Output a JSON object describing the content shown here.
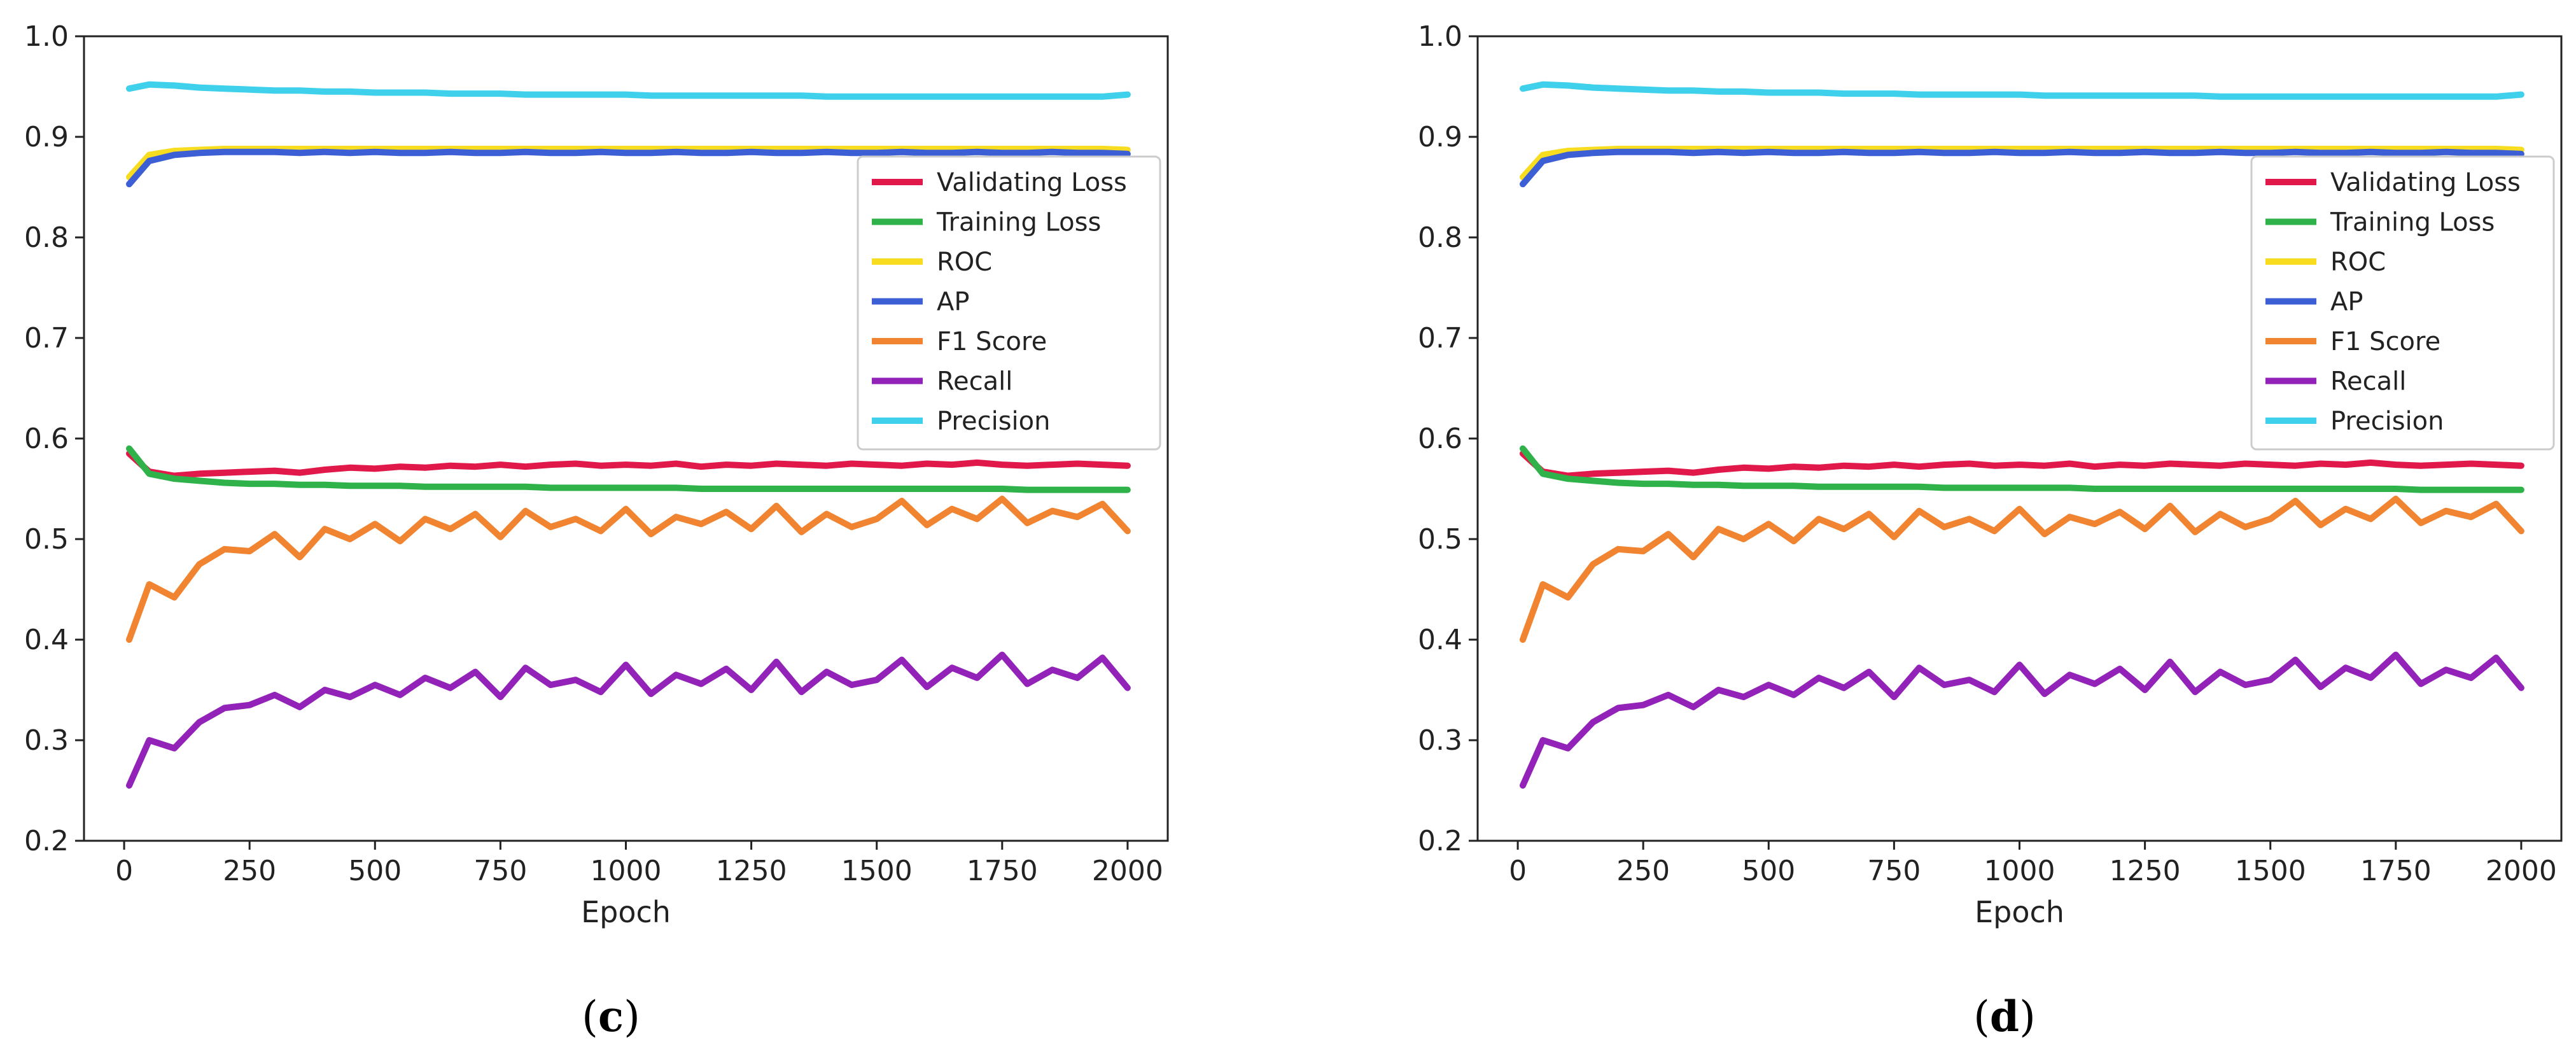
{
  "chart_data": [
    {
      "panel": "c",
      "caption_open": "(",
      "caption_letter": "c",
      "caption_close": ")",
      "type": "line",
      "title": "",
      "xlabel": "Epoch",
      "ylabel": "",
      "xlim": [
        -80,
        2080
      ],
      "ylim": [
        0.2,
        1.0
      ],
      "xticks": [
        0,
        250,
        500,
        750,
        1000,
        1250,
        1500,
        1750,
        2000
      ],
      "yticks": [
        0.2,
        0.3,
        0.4,
        0.5,
        0.6,
        0.7,
        0.8,
        0.9,
        1.0
      ],
      "grid": false,
      "legend_position": "right",
      "x": [
        10,
        50,
        100,
        150,
        200,
        250,
        300,
        350,
        400,
        450,
        500,
        550,
        600,
        650,
        700,
        750,
        800,
        850,
        900,
        950,
        1000,
        1050,
        1100,
        1150,
        1200,
        1250,
        1300,
        1350,
        1400,
        1450,
        1500,
        1550,
        1600,
        1650,
        1700,
        1750,
        1800,
        1850,
        1900,
        1950,
        2000
      ],
      "series": [
        {
          "name": "Validating Loss",
          "color": "#e0194a",
          "values": [
            0.585,
            0.567,
            0.563,
            0.565,
            0.566,
            0.567,
            0.568,
            0.566,
            0.569,
            0.571,
            0.57,
            0.572,
            0.571,
            0.573,
            0.572,
            0.574,
            0.572,
            0.574,
            0.575,
            0.573,
            0.574,
            0.573,
            0.575,
            0.572,
            0.574,
            0.573,
            0.575,
            0.574,
            0.573,
            0.575,
            0.574,
            0.573,
            0.575,
            0.574,
            0.576,
            0.574,
            0.573,
            0.574,
            0.575,
            0.574,
            0.573
          ]
        },
        {
          "name": "Training Loss",
          "color": "#2fb24a",
          "values": [
            0.59,
            0.565,
            0.56,
            0.558,
            0.556,
            0.555,
            0.555,
            0.554,
            0.554,
            0.553,
            0.553,
            0.553,
            0.552,
            0.552,
            0.552,
            0.552,
            0.552,
            0.551,
            0.551,
            0.551,
            0.551,
            0.551,
            0.551,
            0.55,
            0.55,
            0.55,
            0.55,
            0.55,
            0.55,
            0.55,
            0.55,
            0.55,
            0.55,
            0.55,
            0.55,
            0.55,
            0.549,
            0.549,
            0.549,
            0.549,
            0.549
          ]
        },
        {
          "name": "ROC",
          "color": "#f7dc20",
          "values": [
            0.86,
            0.882,
            0.886,
            0.887,
            0.888,
            0.888,
            0.888,
            0.888,
            0.888,
            0.888,
            0.888,
            0.888,
            0.888,
            0.888,
            0.888,
            0.888,
            0.888,
            0.888,
            0.888,
            0.888,
            0.888,
            0.888,
            0.888,
            0.888,
            0.888,
            0.888,
            0.888,
            0.888,
            0.888,
            0.888,
            0.888,
            0.888,
            0.888,
            0.888,
            0.888,
            0.888,
            0.888,
            0.888,
            0.888,
            0.888,
            0.887
          ]
        },
        {
          "name": "AP",
          "color": "#3d5fd6",
          "values": [
            0.853,
            0.876,
            0.882,
            0.884,
            0.885,
            0.885,
            0.885,
            0.884,
            0.885,
            0.884,
            0.885,
            0.884,
            0.884,
            0.885,
            0.884,
            0.884,
            0.885,
            0.884,
            0.884,
            0.885,
            0.884,
            0.884,
            0.885,
            0.884,
            0.884,
            0.885,
            0.884,
            0.884,
            0.885,
            0.884,
            0.884,
            0.885,
            0.884,
            0.884,
            0.885,
            0.884,
            0.884,
            0.885,
            0.884,
            0.884,
            0.883
          ]
        },
        {
          "name": "F1 Score",
          "color": "#f08430",
          "values": [
            0.4,
            0.455,
            0.442,
            0.475,
            0.49,
            0.488,
            0.505,
            0.482,
            0.51,
            0.5,
            0.515,
            0.498,
            0.52,
            0.51,
            0.525,
            0.502,
            0.528,
            0.512,
            0.52,
            0.508,
            0.53,
            0.505,
            0.522,
            0.515,
            0.527,
            0.51,
            0.533,
            0.507,
            0.525,
            0.512,
            0.52,
            0.538,
            0.514,
            0.53,
            0.52,
            0.54,
            0.516,
            0.528,
            0.522,
            0.535,
            0.508
          ]
        },
        {
          "name": "Recall",
          "color": "#9222b8",
          "values": [
            0.255,
            0.3,
            0.292,
            0.318,
            0.332,
            0.335,
            0.345,
            0.333,
            0.35,
            0.343,
            0.355,
            0.345,
            0.362,
            0.352,
            0.368,
            0.343,
            0.372,
            0.355,
            0.36,
            0.348,
            0.375,
            0.346,
            0.365,
            0.356,
            0.371,
            0.35,
            0.378,
            0.348,
            0.368,
            0.355,
            0.36,
            0.38,
            0.353,
            0.372,
            0.362,
            0.385,
            0.356,
            0.37,
            0.362,
            0.382,
            0.352
          ]
        },
        {
          "name": "Precision",
          "color": "#3fd1ec",
          "values": [
            0.948,
            0.952,
            0.951,
            0.949,
            0.948,
            0.947,
            0.946,
            0.946,
            0.945,
            0.945,
            0.944,
            0.944,
            0.944,
            0.943,
            0.943,
            0.943,
            0.942,
            0.942,
            0.942,
            0.942,
            0.942,
            0.941,
            0.941,
            0.941,
            0.941,
            0.941,
            0.941,
            0.941,
            0.94,
            0.94,
            0.94,
            0.94,
            0.94,
            0.94,
            0.94,
            0.94,
            0.94,
            0.94,
            0.94,
            0.94,
            0.942
          ]
        }
      ]
    },
    {
      "panel": "d",
      "caption_open": "(",
      "caption_letter": "d",
      "caption_close": ")",
      "type": "line",
      "title": "",
      "xlabel": "Epoch",
      "ylabel": "",
      "xlim": [
        -80,
        2080
      ],
      "ylim": [
        0.2,
        1.0
      ],
      "xticks": [
        0,
        250,
        500,
        750,
        1000,
        1250,
        1500,
        1750,
        2000
      ],
      "yticks": [
        0.2,
        0.3,
        0.4,
        0.5,
        0.6,
        0.7,
        0.8,
        0.9,
        1.0
      ],
      "grid": false,
      "legend_position": "right",
      "x": [
        10,
        50,
        100,
        150,
        200,
        250,
        300,
        350,
        400,
        450,
        500,
        550,
        600,
        650,
        700,
        750,
        800,
        850,
        900,
        950,
        1000,
        1050,
        1100,
        1150,
        1200,
        1250,
        1300,
        1350,
        1400,
        1450,
        1500,
        1550,
        1600,
        1650,
        1700,
        1750,
        1800,
        1850,
        1900,
        1950,
        2000
      ],
      "series": [
        {
          "name": "Validating Loss",
          "color": "#e0194a",
          "values": [
            0.585,
            0.567,
            0.563,
            0.565,
            0.566,
            0.567,
            0.568,
            0.566,
            0.569,
            0.571,
            0.57,
            0.572,
            0.571,
            0.573,
            0.572,
            0.574,
            0.572,
            0.574,
            0.575,
            0.573,
            0.574,
            0.573,
            0.575,
            0.572,
            0.574,
            0.573,
            0.575,
            0.574,
            0.573,
            0.575,
            0.574,
            0.573,
            0.575,
            0.574,
            0.576,
            0.574,
            0.573,
            0.574,
            0.575,
            0.574,
            0.573
          ]
        },
        {
          "name": "Training Loss",
          "color": "#2fb24a",
          "values": [
            0.59,
            0.565,
            0.56,
            0.558,
            0.556,
            0.555,
            0.555,
            0.554,
            0.554,
            0.553,
            0.553,
            0.553,
            0.552,
            0.552,
            0.552,
            0.552,
            0.552,
            0.551,
            0.551,
            0.551,
            0.551,
            0.551,
            0.551,
            0.55,
            0.55,
            0.55,
            0.55,
            0.55,
            0.55,
            0.55,
            0.55,
            0.55,
            0.55,
            0.55,
            0.55,
            0.55,
            0.549,
            0.549,
            0.549,
            0.549,
            0.549
          ]
        },
        {
          "name": "ROC",
          "color": "#f7dc20",
          "values": [
            0.86,
            0.882,
            0.886,
            0.887,
            0.888,
            0.888,
            0.888,
            0.888,
            0.888,
            0.888,
            0.888,
            0.888,
            0.888,
            0.888,
            0.888,
            0.888,
            0.888,
            0.888,
            0.888,
            0.888,
            0.888,
            0.888,
            0.888,
            0.888,
            0.888,
            0.888,
            0.888,
            0.888,
            0.888,
            0.888,
            0.888,
            0.888,
            0.888,
            0.888,
            0.888,
            0.888,
            0.888,
            0.888,
            0.888,
            0.888,
            0.887
          ]
        },
        {
          "name": "AP",
          "color": "#3d5fd6",
          "values": [
            0.853,
            0.876,
            0.882,
            0.884,
            0.885,
            0.885,
            0.885,
            0.884,
            0.885,
            0.884,
            0.885,
            0.884,
            0.884,
            0.885,
            0.884,
            0.884,
            0.885,
            0.884,
            0.884,
            0.885,
            0.884,
            0.884,
            0.885,
            0.884,
            0.884,
            0.885,
            0.884,
            0.884,
            0.885,
            0.884,
            0.884,
            0.885,
            0.884,
            0.884,
            0.885,
            0.884,
            0.884,
            0.885,
            0.884,
            0.884,
            0.883
          ]
        },
        {
          "name": "F1 Score",
          "color": "#f08430",
          "values": [
            0.4,
            0.455,
            0.442,
            0.475,
            0.49,
            0.488,
            0.505,
            0.482,
            0.51,
            0.5,
            0.515,
            0.498,
            0.52,
            0.51,
            0.525,
            0.502,
            0.528,
            0.512,
            0.52,
            0.508,
            0.53,
            0.505,
            0.522,
            0.515,
            0.527,
            0.51,
            0.533,
            0.507,
            0.525,
            0.512,
            0.52,
            0.538,
            0.514,
            0.53,
            0.52,
            0.54,
            0.516,
            0.528,
            0.522,
            0.535,
            0.508
          ]
        },
        {
          "name": "Recall",
          "color": "#9222b8",
          "values": [
            0.255,
            0.3,
            0.292,
            0.318,
            0.332,
            0.335,
            0.345,
            0.333,
            0.35,
            0.343,
            0.355,
            0.345,
            0.362,
            0.352,
            0.368,
            0.343,
            0.372,
            0.355,
            0.36,
            0.348,
            0.375,
            0.346,
            0.365,
            0.356,
            0.371,
            0.35,
            0.378,
            0.348,
            0.368,
            0.355,
            0.36,
            0.38,
            0.353,
            0.372,
            0.362,
            0.385,
            0.356,
            0.37,
            0.362,
            0.382,
            0.352
          ]
        },
        {
          "name": "Precision",
          "color": "#3fd1ec",
          "values": [
            0.948,
            0.952,
            0.951,
            0.949,
            0.948,
            0.947,
            0.946,
            0.946,
            0.945,
            0.945,
            0.944,
            0.944,
            0.944,
            0.943,
            0.943,
            0.943,
            0.942,
            0.942,
            0.942,
            0.942,
            0.942,
            0.941,
            0.941,
            0.941,
            0.941,
            0.941,
            0.941,
            0.941,
            0.94,
            0.94,
            0.94,
            0.94,
            0.94,
            0.94,
            0.94,
            0.94,
            0.94,
            0.94,
            0.94,
            0.94,
            0.942
          ]
        }
      ]
    }
  ]
}
